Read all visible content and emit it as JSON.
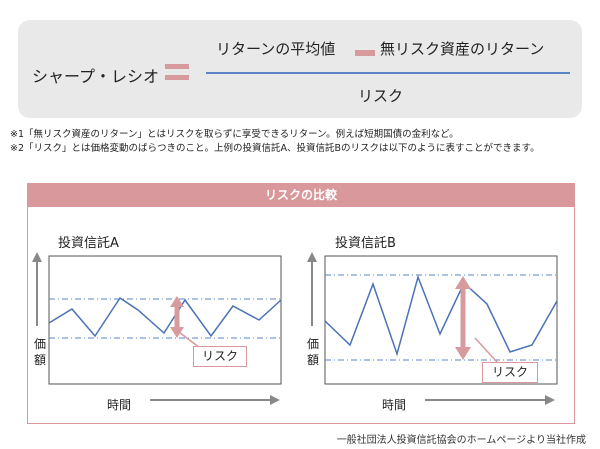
{
  "formula": {
    "lhs": "シャープ・レシオ",
    "numerator_left": "リターンの平均値",
    "numerator_right": "無リスク資産のリターン",
    "denominator": "リスク",
    "accent_color": "#d79a9d",
    "fraction_line_color": "#5b84c4"
  },
  "notes": [
    "※1「無リスク資産のリターン」とはリスクを取らずに享受できるリターン。例えば短期国債の金利など。",
    "※2「リスク」とは価格変動のばらつきのこと。上例の投資信託A、投資信託Bのリスクは以下のように表すことができます。"
  ],
  "panel": {
    "title": "リスクの比較",
    "header_color": "#d9989b",
    "charts": [
      {
        "title": "投資信託A",
        "y_axis_label": "価額",
        "x_axis_label": "時間",
        "risk_label": "リスク"
      },
      {
        "title": "投資信託B",
        "y_axis_label": "価額",
        "x_axis_label": "時間",
        "risk_label": "リスク"
      }
    ]
  },
  "source": "一般社団法人投資信託協会のホームページより当社作成"
}
